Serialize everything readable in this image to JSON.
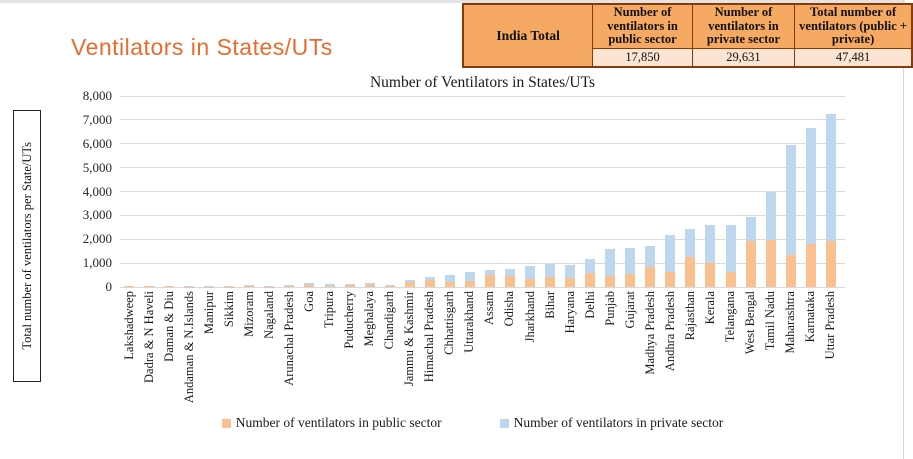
{
  "slide": {
    "title": "Ventilators in States/UTs",
    "accent_color": "#e86c2e"
  },
  "india_table": {
    "row_header": "India Total",
    "columns": [
      "Number of ventilators in public sector",
      "Number of ventilators in private sector",
      "Total number of ventilators (public + private)"
    ],
    "values": [
      "17,850",
      "29,631",
      "47,481"
    ],
    "header_bg": "#f5a962",
    "value_bg": "#fbe5d2",
    "border_color": "#843c0c"
  },
  "chart_data": {
    "type": "bar",
    "stacked": true,
    "title": "Number of Ventilators in States/UTs",
    "ylabel": "Total number of ventilators per State/UTs",
    "xlabel": "",
    "ylim": [
      0,
      8000
    ],
    "ytick_step": 1000,
    "grid": true,
    "legend_position": "bottom",
    "categories": [
      "Lakshadweep",
      "Dadra & N Haveli",
      "Daman & Diu",
      "Andaman & N.Islands",
      "Manipur",
      "Sikkim",
      "Mizoram",
      "Nagaland",
      "Arunachal Pradesh",
      "Goa",
      "Tripura",
      "Puducherry",
      "Meghalaya",
      "Chandigarh",
      "Jammu & Kashmir",
      "Himachal Pradesh",
      "Chhattisgarh",
      "Uttarakhand",
      "Assam",
      "Odisha",
      "Jharkhand",
      "Bihar",
      "Haryana",
      "Delhi",
      "Punjab",
      "Gujarat",
      "Madhya Pradesh",
      "Andhra Pradesh",
      "Rajasthan",
      "Kerala",
      "Telangana",
      "West Bengal",
      "Tamil Nadu",
      "Maharashtra",
      "Karnataka",
      "Uttar Pradesh"
    ],
    "series": [
      {
        "name": "Number of ventilators in public sector",
        "color": "#fac090",
        "values": [
          5,
          5,
          5,
          15,
          25,
          20,
          30,
          25,
          40,
          80,
          60,
          65,
          70,
          40,
          200,
          310,
          220,
          260,
          500,
          470,
          330,
          430,
          360,
          570,
          470,
          540,
          820,
          640,
          1240,
          1000,
          610,
          1950,
          2000,
          1350,
          1800,
          1930
        ]
      },
      {
        "name": "Number of ventilators in private sector",
        "color": "#bdd7ee",
        "values": [
          10,
          10,
          15,
          25,
          35,
          30,
          35,
          35,
          45,
          70,
          65,
          60,
          90,
          45,
          90,
          110,
          290,
          380,
          220,
          280,
          530,
          530,
          570,
          600,
          1110,
          1110,
          880,
          1540,
          1180,
          1600,
          1990,
          1000,
          1990,
          4610,
          4880,
          5320
        ]
      }
    ]
  }
}
